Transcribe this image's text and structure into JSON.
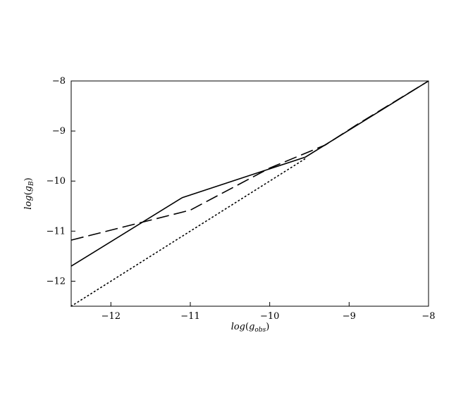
{
  "chart_data": {
    "type": "line",
    "xlabel": {
      "main": "log",
      "g": "g",
      "sub": "obs"
    },
    "ylabel": {
      "main": "log",
      "g": "g",
      "sub": "B"
    },
    "xlim": [
      -12.5,
      -8
    ],
    "ylim": [
      -12.5,
      -8
    ],
    "xticks": [
      -12,
      -11,
      -10,
      -9,
      -8
    ],
    "yticks": [
      -8,
      -9,
      -10,
      -11,
      -12
    ],
    "xtick_labels": [
      "−12",
      "−11",
      "−10",
      "−9",
      "−8"
    ],
    "ytick_labels": [
      "−8",
      "−9",
      "−10",
      "−11",
      "−12"
    ],
    "grid": false,
    "legend": "none",
    "series": [
      {
        "style": "solid",
        "color": "#000000",
        "x": [
          -12.5,
          -11.1,
          -9.55,
          -8.0
        ],
        "y": [
          -11.7,
          -10.33,
          -9.52,
          -8.0
        ]
      },
      {
        "style": "dashed",
        "color": "#000000",
        "x": [
          -12.5,
          -11.0,
          -10.0,
          -9.3,
          -8.9,
          -8.0
        ],
        "y": [
          -11.18,
          -10.58,
          -9.74,
          -9.28,
          -8.87,
          -8.0
        ]
      },
      {
        "style": "dotted",
        "color": "#000000",
        "x": [
          -12.5,
          -9.55
        ],
        "y": [
          -12.5,
          -9.55
        ]
      }
    ]
  }
}
